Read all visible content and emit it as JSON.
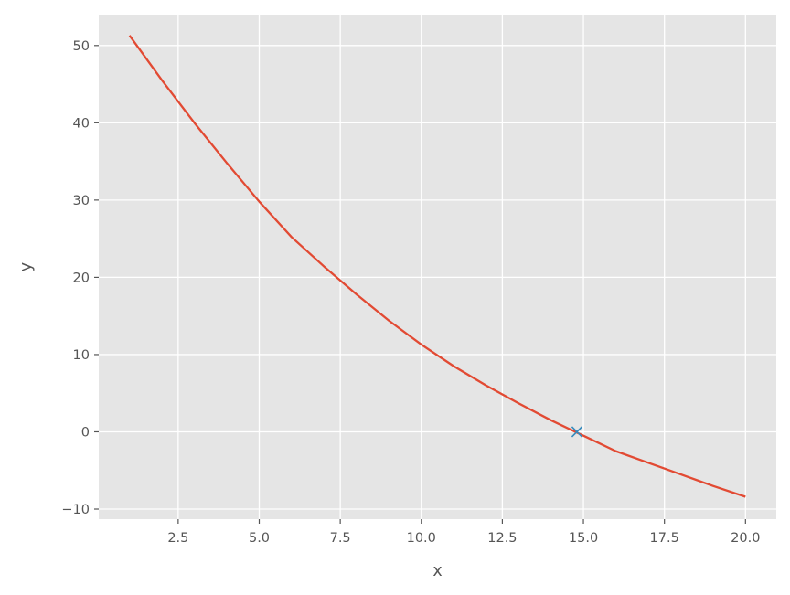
{
  "chart_data": {
    "type": "line",
    "xlabel": "x",
    "ylabel": "y",
    "xlim": [
      0.05,
      20.95
    ],
    "ylim": [
      -11.3,
      54
    ],
    "xticks": [
      2.5,
      5.0,
      7.5,
      10.0,
      12.5,
      15.0,
      17.5,
      20.0
    ],
    "xtick_labels": [
      "2.5",
      "5.0",
      "7.5",
      "10.0",
      "12.5",
      "15.0",
      "17.5",
      "20.0"
    ],
    "yticks": [
      -10,
      0,
      10,
      20,
      30,
      40,
      50
    ],
    "ytick_labels": [
      "−10",
      "0",
      "10",
      "20",
      "30",
      "40",
      "50"
    ],
    "grid": true,
    "series": [
      {
        "style": "line",
        "color": "#E24A33",
        "points": [
          [
            1.0,
            51.3
          ],
          [
            2.0,
            45.5
          ],
          [
            3.0,
            40.0
          ],
          [
            4.0,
            34.8
          ],
          [
            5.0,
            29.8
          ],
          [
            6.0,
            25.2
          ],
          [
            7.0,
            21.4
          ],
          [
            8.0,
            17.8
          ],
          [
            9.0,
            14.4
          ],
          [
            10.0,
            11.3
          ],
          [
            11.0,
            8.5
          ],
          [
            12.0,
            6.0
          ],
          [
            13.0,
            3.7
          ],
          [
            14.0,
            1.5
          ],
          [
            15.0,
            -0.5
          ],
          [
            16.0,
            -2.5
          ],
          [
            17.0,
            -4.0
          ],
          [
            18.0,
            -5.5
          ],
          [
            19.0,
            -7.0
          ],
          [
            20.0,
            -8.4
          ]
        ]
      },
      {
        "style": "marker",
        "marker": "x",
        "color": "#348ABD",
        "points": [
          [
            14.8,
            0.0
          ]
        ]
      }
    ]
  }
}
